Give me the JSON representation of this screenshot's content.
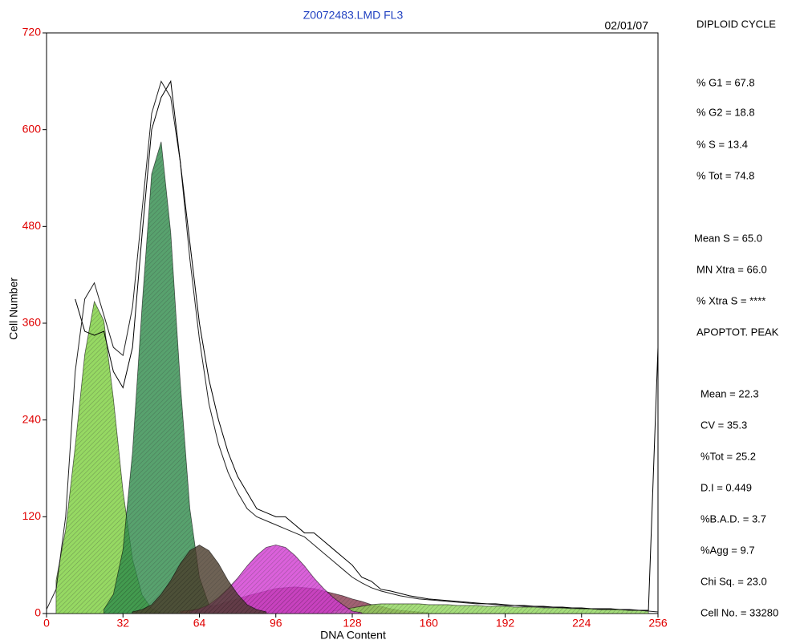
{
  "chart_data": {
    "type": "area",
    "title": "Z0072483.LMD FL3",
    "date": "02/01/07",
    "x_label": "DNA Content",
    "y_label": "Cell Number",
    "xlim": [
      0,
      256
    ],
    "ylim": [
      0,
      720
    ],
    "xticks": [
      0,
      32,
      64,
      96,
      128,
      160,
      192,
      224,
      256
    ],
    "yticks": [
      0,
      120,
      240,
      360,
      480,
      600,
      720
    ],
    "tick_color": "#e00000",
    "x": [
      0,
      4,
      8,
      12,
      16,
      20,
      24,
      28,
      32,
      36,
      40,
      44,
      48,
      52,
      56,
      60,
      64,
      68,
      72,
      76,
      80,
      84,
      88,
      92,
      96,
      100,
      104,
      108,
      112,
      116,
      120,
      124,
      128,
      132,
      136,
      140,
      144,
      148,
      152,
      156,
      160,
      164,
      168,
      172,
      176,
      180,
      184,
      188,
      192,
      196,
      200,
      204,
      208,
      212,
      216,
      220,
      224,
      228,
      232,
      236,
      240,
      244,
      248,
      252,
      256
    ],
    "series": [
      {
        "style": "area",
        "color": "#7ccf3c",
        "values": [
          null,
          41,
          104,
          207,
          321,
          387,
          363,
          266,
          152,
          67,
          23,
          6,
          1,
          null,
          null,
          null,
          null,
          null,
          null,
          null,
          null,
          null,
          null,
          null,
          null,
          null,
          null,
          null,
          null,
          null,
          null,
          null,
          null,
          null,
          null,
          null,
          null,
          null,
          null,
          null,
          null,
          null,
          null,
          null,
          null,
          null,
          null,
          null,
          null,
          null,
          null,
          null,
          null,
          null,
          null,
          null,
          null,
          null,
          null,
          null,
          null,
          null,
          null,
          null,
          null
        ]
      },
      {
        "style": "area",
        "color": "#2e8b4a",
        "values": [
          null,
          null,
          null,
          null,
          null,
          null,
          5,
          24,
          79,
          200,
          381,
          545,
          585,
          472,
          286,
          130,
          45,
          11,
          2,
          null,
          null,
          null,
          null,
          null,
          null,
          null,
          null,
          null,
          null,
          null,
          null,
          null,
          null,
          null,
          null,
          null,
          null,
          null,
          null,
          null,
          null,
          null,
          null,
          null,
          null,
          null,
          null,
          null,
          null,
          null,
          null,
          null,
          null,
          null,
          null,
          null,
          null,
          null,
          null,
          null,
          null,
          null,
          null,
          null,
          null
        ]
      },
      {
        "style": "area",
        "color": "#8b3a50",
        "values": [
          null,
          null,
          null,
          null,
          null,
          null,
          null,
          null,
          null,
          null,
          null,
          null,
          null,
          null,
          3,
          4,
          6,
          9,
          11,
          15,
          18,
          22,
          25,
          28,
          31,
          32,
          33,
          32,
          31,
          28,
          25,
          22,
          18,
          15,
          11,
          9,
          6,
          4,
          3,
          2,
          1,
          null,
          null,
          null,
          null,
          null,
          null,
          null,
          null,
          null,
          null,
          null,
          null,
          null,
          null,
          null,
          null,
          null,
          null,
          null,
          null,
          null,
          null,
          null,
          null
        ]
      },
      {
        "style": "area",
        "color": "#8fd65a",
        "values": [
          null,
          null,
          null,
          null,
          null,
          null,
          null,
          null,
          null,
          null,
          null,
          null,
          null,
          null,
          null,
          null,
          null,
          null,
          null,
          null,
          null,
          null,
          null,
          null,
          null,
          null,
          null,
          null,
          null,
          null,
          3,
          5,
          7,
          9,
          11,
          12,
          12,
          12,
          12,
          12,
          11,
          11,
          11,
          10,
          10,
          10,
          9,
          9,
          9,
          8,
          8,
          8,
          7,
          7,
          7,
          6,
          6,
          6,
          5,
          5,
          5,
          4,
          4,
          3,
          null
        ]
      },
      {
        "style": "area",
        "color": "#d23ad2",
        "values": [
          null,
          null,
          null,
          null,
          null,
          null,
          null,
          null,
          null,
          null,
          null,
          null,
          null,
          null,
          null,
          3,
          6,
          11,
          20,
          31,
          44,
          59,
          72,
          82,
          85,
          82,
          72,
          59,
          44,
          31,
          20,
          11,
          3,
          1,
          null,
          null,
          null,
          null,
          null,
          null,
          null,
          null,
          null,
          null,
          null,
          null,
          null,
          null,
          null,
          null,
          null,
          null,
          null,
          null,
          null,
          null,
          null,
          null,
          null,
          null,
          null,
          null,
          null,
          null,
          null
        ]
      },
      {
        "style": "area",
        "color": "#4a3b2a",
        "values": [
          null,
          null,
          null,
          null,
          null,
          null,
          null,
          null,
          null,
          2,
          5,
          11,
          24,
          41,
          62,
          78,
          85,
          78,
          62,
          41,
          24,
          11,
          5,
          2,
          null,
          null,
          null,
          null,
          null,
          null,
          null,
          null,
          null,
          null,
          null,
          null,
          null,
          null,
          null,
          null,
          null,
          null,
          null,
          null,
          null,
          null,
          null,
          null,
          null,
          null,
          null,
          null,
          null,
          null,
          null,
          null,
          null,
          null,
          null,
          null,
          null,
          null,
          null,
          null,
          null
        ]
      },
      {
        "style": "line",
        "color": "#222222",
        "values": [
          5,
          30,
          120,
          300,
          390,
          410,
          370,
          330,
          320,
          380,
          500,
          620,
          660,
          640,
          560,
          440,
          340,
          260,
          210,
          175,
          150,
          130,
          120,
          115,
          110,
          105,
          100,
          95,
          85,
          75,
          65,
          55,
          45,
          38,
          32,
          28,
          25,
          22,
          20,
          18,
          17,
          16,
          15,
          14,
          13,
          12,
          12,
          11,
          10,
          10,
          9,
          9,
          8,
          8,
          7,
          7,
          6,
          6,
          5,
          5,
          5,
          4,
          4,
          3,
          2
        ]
      },
      {
        "style": "line",
        "color": "#000000",
        "values": [
          null,
          null,
          null,
          390,
          350,
          345,
          350,
          300,
          280,
          330,
          470,
          600,
          640,
          660,
          560,
          460,
          360,
          290,
          240,
          200,
          170,
          150,
          130,
          125,
          120,
          120,
          110,
          100,
          100,
          90,
          80,
          70,
          60,
          45,
          40,
          30,
          28,
          25,
          22,
          20,
          18,
          17,
          16,
          15,
          14,
          13,
          12,
          12,
          11,
          10,
          10,
          9,
          9,
          8,
          8,
          7,
          7,
          6,
          6,
          6,
          5,
          5,
          4,
          4,
          330
        ]
      }
    ]
  },
  "panel": {
    "lines": [
      "DIPLOID CYCLE",
      "% G1 = 67.8",
      "% G2 = 18.8",
      "% S = 13.4",
      "% Tot = 74.8",
      "Mean S = 65.0",
      "MN Xtra = 66.0",
      "% Xtra S = ****",
      "APOPTOT. PEAK",
      "Mean = 22.3",
      "CV = 35.3",
      "%Tot = 25.2",
      "D.I = 0.449",
      "%B.A.D. = 3.7",
      "%Agg = 9.7",
      "Chi Sq. = 23.0",
      "Cell No. = 33280"
    ]
  }
}
